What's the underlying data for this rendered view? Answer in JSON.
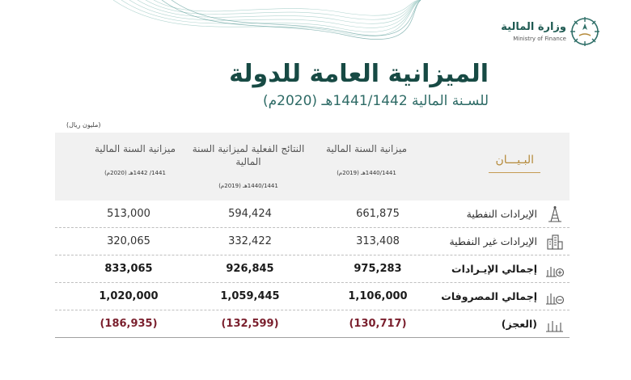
{
  "logo": {
    "arabic": "وزارة المالية",
    "english": "Ministry of Finance"
  },
  "title": "الميزانية العامة للدولة",
  "subtitle": "للسـنة المالية 1441/1442هـ (2020م)",
  "unit": "(مليون ريال)",
  "table": {
    "label_header": "البـيـــان",
    "columns": [
      {
        "title": "ميزانية السنة المالية",
        "period": "1440/1441هـ (2019م)"
      },
      {
        "title": "النتائج الفعلية لميزانية السنة المالية",
        "period": "1440/1441هـ (2019م)"
      },
      {
        "title": "ميزانية السنة المالية",
        "period": "1441/ 1442هـ (2020م)"
      }
    ],
    "rows": [
      {
        "label": "الإيرادات النفطية",
        "icon": "oil-rig-icon",
        "values": [
          "661,875",
          "594,424",
          "513,000"
        ]
      },
      {
        "label": "الإيرادات غير النفطية",
        "icon": "buildings-icon",
        "values": [
          "313,408",
          "332,422",
          "320,065"
        ]
      },
      {
        "label": "إجمالي الإيـرادات",
        "icon": "revenue-chart-plus-icon",
        "values": [
          "975,283",
          "926,845",
          "833,065"
        ]
      },
      {
        "label": "إجمالي المصروفات",
        "icon": "expense-chart-minus-icon",
        "values": [
          "1,106,000",
          "1,059,445",
          "1,020,000"
        ]
      },
      {
        "label": "(العجز)",
        "icon": "deficit-chart-icon",
        "values": [
          "(130,717)",
          "(132,599)",
          "(186,935)"
        ]
      }
    ]
  }
}
